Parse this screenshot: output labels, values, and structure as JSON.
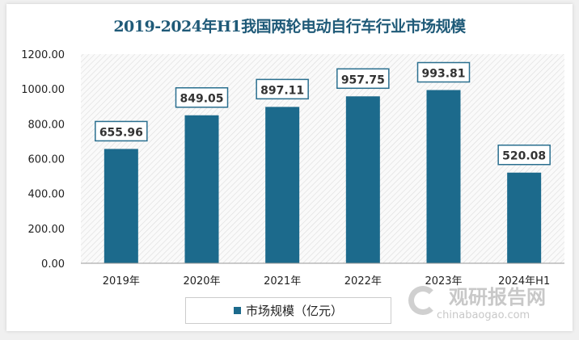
{
  "chart_data": {
    "type": "bar",
    "title": "2019-2024年H1我国两轮电动自行车行业市场规模",
    "categories": [
      "2019年",
      "2020年",
      "2021年",
      "2022年",
      "2023年",
      "2024年H1"
    ],
    "series": [
      {
        "name": "市场规模（亿元）",
        "values": [
          655.96,
          849.05,
          897.11,
          957.75,
          993.81,
          520.08
        ]
      }
    ],
    "data_labels": [
      "655.96",
      "849.05",
      "897.11",
      "957.75",
      "993.81",
      "520.08"
    ],
    "ylim": [
      0,
      1200
    ],
    "yticks": [
      "0.00",
      "200.00",
      "400.00",
      "600.00",
      "800.00",
      "1000.00",
      "1200.00"
    ],
    "grid": false,
    "legend": "bottom",
    "bar_color": "#1c6a8c",
    "plot_background": "diagonal hatch"
  },
  "watermark": {
    "name": "观研报告网",
    "url": "chinabaogao.com"
  }
}
